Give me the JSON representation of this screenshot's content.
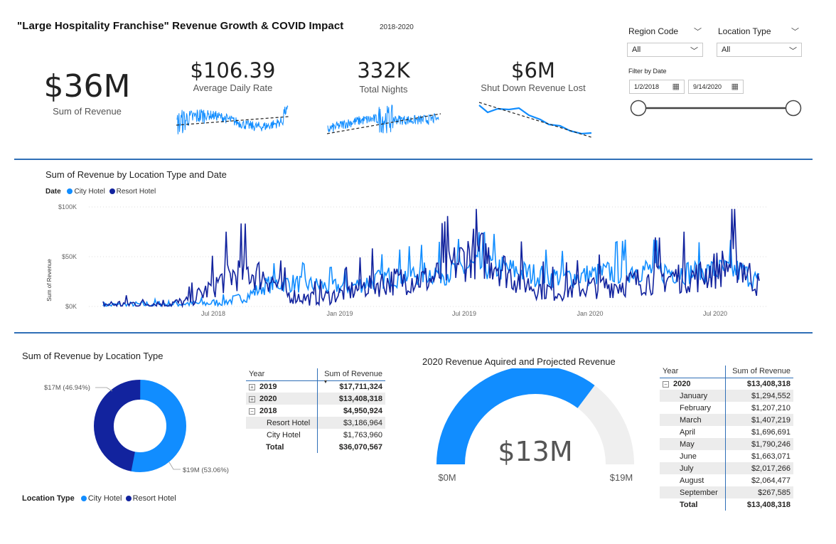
{
  "header": {
    "title": "\"Large Hospitality Franchise\" Revenue Growth & COVID Impact",
    "subtitle": "2018-2020"
  },
  "kpis": {
    "revenue": {
      "value": "$36M",
      "label": "Sum of Revenue"
    },
    "adr": {
      "value": "$106.39",
      "label": "Average Daily Rate"
    },
    "nights": {
      "value": "332K",
      "label": "Total Nights"
    },
    "lost": {
      "value": "$6M",
      "label": "Shut Down Revenue Lost"
    }
  },
  "slicers": {
    "region": {
      "label": "Region Code",
      "value": "All"
    },
    "location": {
      "label": "Location Type",
      "value": "All"
    },
    "date": {
      "label": "Filter by Date",
      "start": "1/2/2018",
      "end": "9/14/2020"
    }
  },
  "colors": {
    "city_hotel": "#118dff",
    "resort_hotel": "#12239e",
    "divider": "#2f6fb7",
    "gauge_bg": "#efefef"
  },
  "line_chart": {
    "title": "Sum of Revenue by Location Type and Date",
    "legend_title": "Date",
    "y_axis_label": "Sum of Revenue",
    "y_ticks": [
      "$100K",
      "$50K",
      "$0K"
    ],
    "x_ticks": [
      "Jul 2018",
      "Jan 2019",
      "Jul 2019",
      "Jan 2020",
      "Jul 2020"
    ]
  },
  "donut": {
    "title": "Sum of Revenue by Location Type",
    "legend_title": "Location Type",
    "label_resort": "$17M (46.94%)",
    "label_city": "$19M (53.06%)"
  },
  "year_table": {
    "headers": [
      "Year",
      "Sum of Revenue"
    ],
    "rows": [
      {
        "label": "2019",
        "value": "$17,711,324",
        "bold": true,
        "expander": "⊞",
        "indent": false,
        "shade": false
      },
      {
        "label": "2020",
        "value": "$13,408,318",
        "bold": true,
        "expander": "⊞",
        "indent": false,
        "shade": true
      },
      {
        "label": "2018",
        "value": "$4,950,924",
        "bold": true,
        "expander": "⊟",
        "indent": false,
        "shade": false
      },
      {
        "label": "Resort Hotel",
        "value": "$3,186,964",
        "bold": false,
        "expander": "",
        "indent": true,
        "shade": true
      },
      {
        "label": "City Hotel",
        "value": "$1,763,960",
        "bold": false,
        "expander": "",
        "indent": true,
        "shade": false
      },
      {
        "label": "Total",
        "value": "$36,070,567",
        "bold": true,
        "expander": "",
        "indent": false,
        "shade": false
      }
    ]
  },
  "gauge": {
    "title": "2020 Revenue Aquired and Projected Revenue",
    "value_label": "$13M",
    "min_label": "$0M",
    "max_label": "$19M"
  },
  "month_table": {
    "headers": [
      "Year",
      "Sum of Revenue"
    ],
    "rows": [
      {
        "label": "2020",
        "value": "$13,408,318",
        "bold": true,
        "expander": "⊟",
        "indent": false,
        "shade": false
      },
      {
        "label": "January",
        "value": "$1,294,552",
        "bold": false,
        "expander": "",
        "indent": true,
        "shade": true
      },
      {
        "label": "February",
        "value": "$1,207,210",
        "bold": false,
        "expander": "",
        "indent": true,
        "shade": false
      },
      {
        "label": "March",
        "value": "$1,407,219",
        "bold": false,
        "expander": "",
        "indent": true,
        "shade": true
      },
      {
        "label": "April",
        "value": "$1,696,691",
        "bold": false,
        "expander": "",
        "indent": true,
        "shade": false
      },
      {
        "label": "May",
        "value": "$1,790,246",
        "bold": false,
        "expander": "",
        "indent": true,
        "shade": true
      },
      {
        "label": "June",
        "value": "$1,663,071",
        "bold": false,
        "expander": "",
        "indent": true,
        "shade": false
      },
      {
        "label": "July",
        "value": "$2,017,266",
        "bold": false,
        "expander": "",
        "indent": true,
        "shade": true
      },
      {
        "label": "August",
        "value": "$2,064,477",
        "bold": false,
        "expander": "",
        "indent": true,
        "shade": false
      },
      {
        "label": "September",
        "value": "$267,585",
        "bold": false,
        "expander": "",
        "indent": true,
        "shade": true
      },
      {
        "label": "Total",
        "value": "$13,408,318",
        "bold": true,
        "expander": "",
        "indent": false,
        "shade": false
      }
    ]
  },
  "chart_data": [
    {
      "type": "line",
      "title": "Sum of Revenue by Location Type and Date",
      "ylabel": "Sum of Revenue",
      "ylim": [
        0,
        100000
      ],
      "x_ticks": [
        "Jul 2018",
        "Jan 2019",
        "Jul 2019",
        "Jan 2020",
        "Jul 2020"
      ],
      "x_range": [
        "2018-01-02",
        "2020-09-14"
      ],
      "series": [
        {
          "name": "City Hotel",
          "approx_monthly": [
            1000,
            1500,
            2000,
            2500,
            3000,
            3000,
            5000,
            10000,
            22000,
            24000,
            22000,
            20000,
            20000,
            25000,
            30000,
            32000,
            34000,
            35000,
            40000,
            40000,
            36000,
            32000,
            30000,
            30000,
            32000,
            35000,
            38000,
            36000,
            35000,
            34000,
            36000,
            36000,
            25000
          ]
        },
        {
          "name": "Resort Hotel",
          "approx_monthly": [
            2000,
            2500,
            3000,
            3000,
            4000,
            15000,
            30000,
            35000,
            30000,
            12000,
            8000,
            10000,
            15000,
            22000,
            25000,
            28000,
            27000,
            40000,
            55000,
            48000,
            30000,
            20000,
            15000,
            18000,
            20000,
            22000,
            25000,
            28000,
            30000,
            30000,
            38000,
            45000,
            20000
          ]
        }
      ]
    },
    {
      "type": "pie",
      "title": "Sum of Revenue by Location Type",
      "categories": [
        "City Hotel",
        "Resort Hotel"
      ],
      "values": [
        19,
        17
      ],
      "percentages": [
        53.06,
        46.94
      ],
      "unit": "$M"
    },
    {
      "type": "table",
      "columns": [
        "Year",
        "Sum of Revenue"
      ],
      "rows": [
        [
          "2019",
          17711324
        ],
        [
          "2020",
          13408318
        ],
        [
          "2018",
          4950924
        ],
        [
          "Resort Hotel",
          3186964
        ],
        [
          "City Hotel",
          1763960
        ],
        [
          "Total",
          36070567
        ]
      ]
    },
    {
      "type": "bar",
      "subtype": "gauge",
      "title": "2020 Revenue Aquired and Projected Revenue",
      "values": [
        13.4
      ],
      "ylim": [
        0,
        19
      ],
      "unit": "$M"
    },
    {
      "type": "table",
      "columns": [
        "Year",
        "Sum of Revenue"
      ],
      "rows": [
        [
          "2020",
          13408318
        ],
        [
          "January",
          1294552
        ],
        [
          "February",
          1207210
        ],
        [
          "March",
          1407219
        ],
        [
          "April",
          1696691
        ],
        [
          "May",
          1790246
        ],
        [
          "June",
          1663071
        ],
        [
          "July",
          2017266
        ],
        [
          "August",
          2064477
        ],
        [
          "September",
          267585
        ],
        [
          "Total",
          13408318
        ]
      ]
    }
  ]
}
